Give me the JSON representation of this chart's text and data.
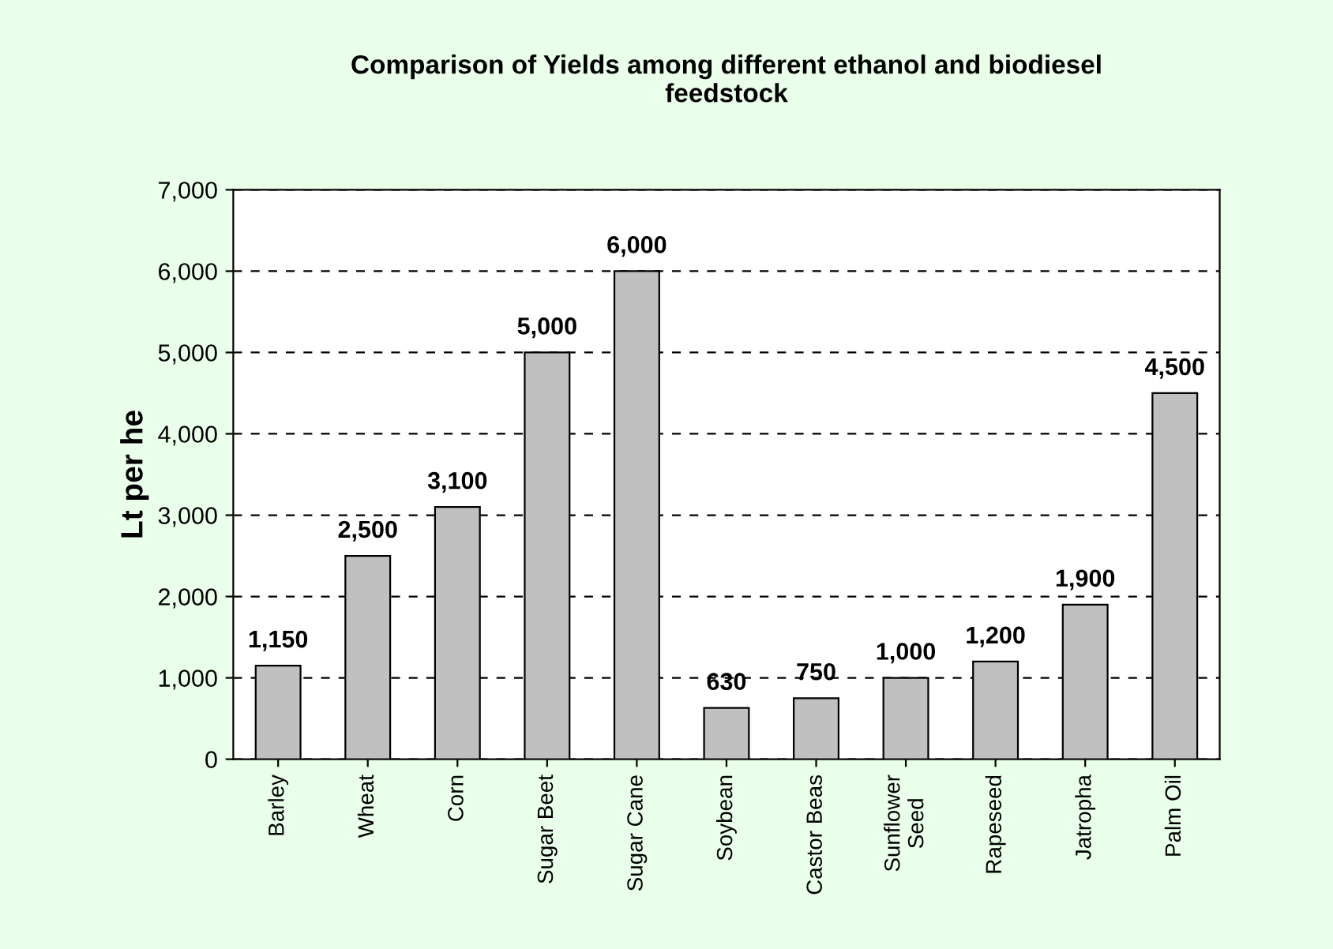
{
  "chart_data": {
    "type": "bar",
    "title": "Comparison of Yields among different ethanol and biodiesel\nfeedstock",
    "ylabel": "Lt per he",
    "categories": [
      "Barley",
      "Wheat",
      "Corn",
      "Sugar Beet",
      "Sugar Cane",
      "Soybean",
      "Castor Beas",
      "Sunflower\nSeed",
      "Rapeseed",
      "Jatropha",
      "Palm Oil"
    ],
    "values": [
      1150,
      2500,
      3100,
      5000,
      6000,
      630,
      750,
      1000,
      1200,
      1900,
      4500
    ],
    "value_labels": [
      "1,150",
      "2,500",
      "3,100",
      "5,000",
      "6,000",
      "630",
      "750",
      "1,000",
      "1,200",
      "1,900",
      "4,500"
    ],
    "color": "#c0c0c0",
    "ylim": [
      0,
      7000
    ],
    "yticks": [
      0,
      {
        "value": 1000,
        "label": "1,000"
      },
      {
        "value": 2000,
        "label": "2,000"
      },
      {
        "value": 3000,
        "label": "3,000"
      },
      {
        "value": 4000,
        "label": "4,000"
      },
      {
        "value": 5000,
        "label": "5,000"
      },
      {
        "value": 6000,
        "label": "6,000"
      },
      {
        "value": 7000,
        "label": "7,000"
      }
    ],
    "grid": "y",
    "legend": false
  }
}
